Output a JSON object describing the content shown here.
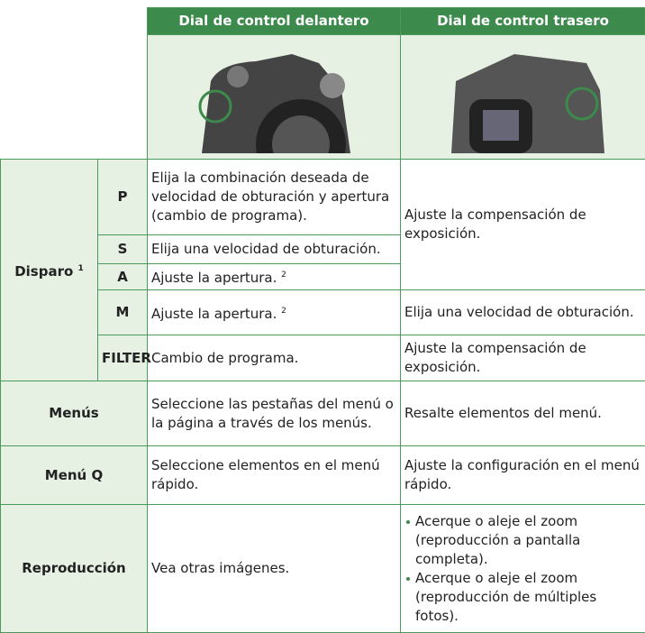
{
  "table": {
    "headers": [
      "Dial de control delantero",
      "Dial de control trasero"
    ],
    "shooting": {
      "label": "Disparo",
      "note": "1",
      "modes": [
        {
          "mode": "P",
          "front": "Elija la combinación deseada de velocidad de obturación y apertura (cambio de programa)."
        },
        {
          "mode": "S",
          "front": "Elija una velocidad de obturación."
        },
        {
          "mode": "A",
          "front": "Ajuste la apertura.",
          "front_note": "2"
        },
        {
          "mode": "M",
          "front": "Ajuste la apertura.",
          "front_note": "2",
          "rear": "Elija una velocidad de obturación."
        },
        {
          "mode": "FILTER",
          "front": "Cambio de programa.",
          "rear": "Ajuste la compensación de exposición."
        }
      ],
      "rear_psa": "Ajuste la compensación de exposición."
    },
    "rows": [
      {
        "label": "Menús",
        "front": "Seleccione las pestañas del menú o la página a través de los menús.",
        "rear": "Resalte elementos del menú."
      },
      {
        "label": "Menú Q",
        "front": "Seleccione elementos en el menú rápido.",
        "rear": "Ajuste la configuración en el menú rápido."
      }
    ],
    "playback": {
      "label": "Reproducción",
      "front": "Vea otras imágenes.",
      "rear": [
        "Acerque o aleje el zoom (reproducción a pantalla completa).",
        "Acerque o aleje el zoom (reproducción de múltiples fotos)."
      ]
    }
  }
}
